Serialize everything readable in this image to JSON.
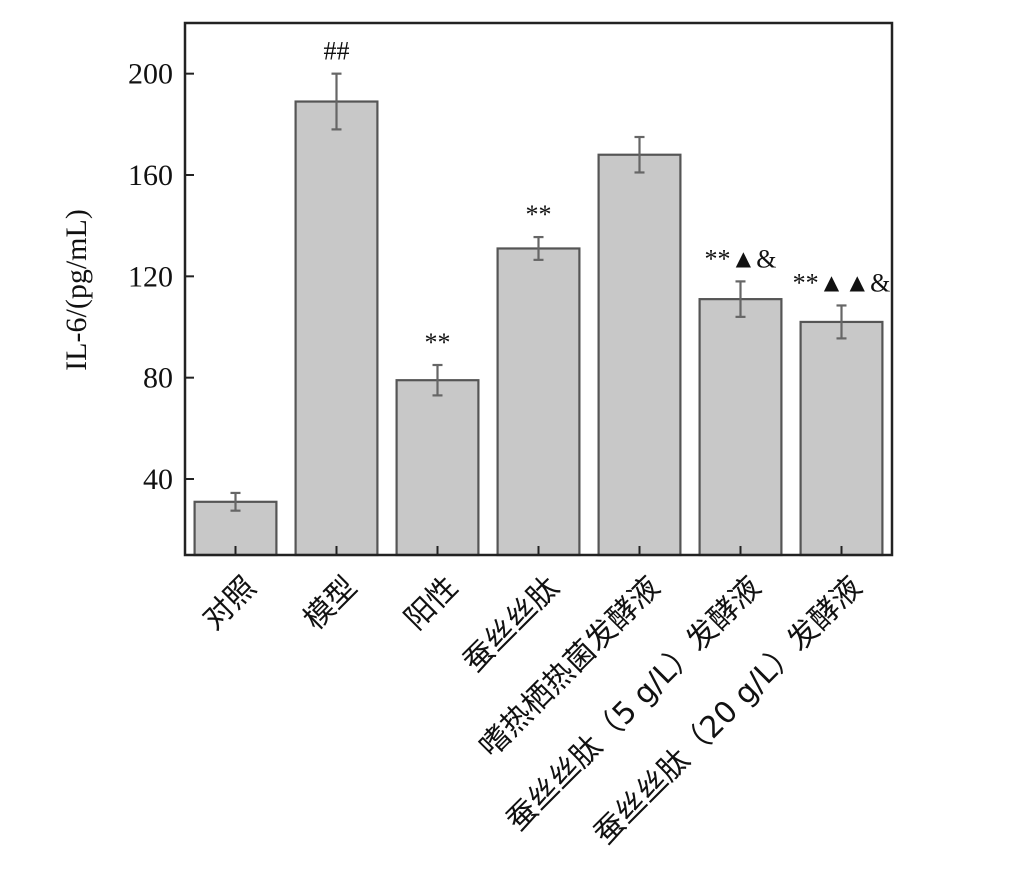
{
  "chart_data": {
    "type": "bar",
    "ylabel": "IL-6/(pg/mL)",
    "xlabel": "",
    "ylim": [
      10,
      220
    ],
    "yticks": [
      40,
      80,
      120,
      160,
      200
    ],
    "grid": false,
    "categories": [
      "对照",
      "模型",
      "阳性",
      "蚕丝丝肽",
      "嗜热栖热菌发酵液",
      "蚕丝丝肽（5 g/L）发酵液",
      "蚕丝丝肽（20 g/L）发酵液"
    ],
    "values": [
      31,
      189,
      79,
      131,
      168,
      111,
      102
    ],
    "errors": [
      3.5,
      11,
      6,
      4.5,
      7,
      7,
      6.5
    ],
    "annotations": [
      "",
      "##",
      "**",
      "**",
      "",
      "**▲&",
      "**▲▲&"
    ],
    "colors": {
      "bar_fill": "#c8c8c8",
      "bar_stroke": "#555555",
      "error_bar": "#666666",
      "axis": "#222222"
    }
  }
}
